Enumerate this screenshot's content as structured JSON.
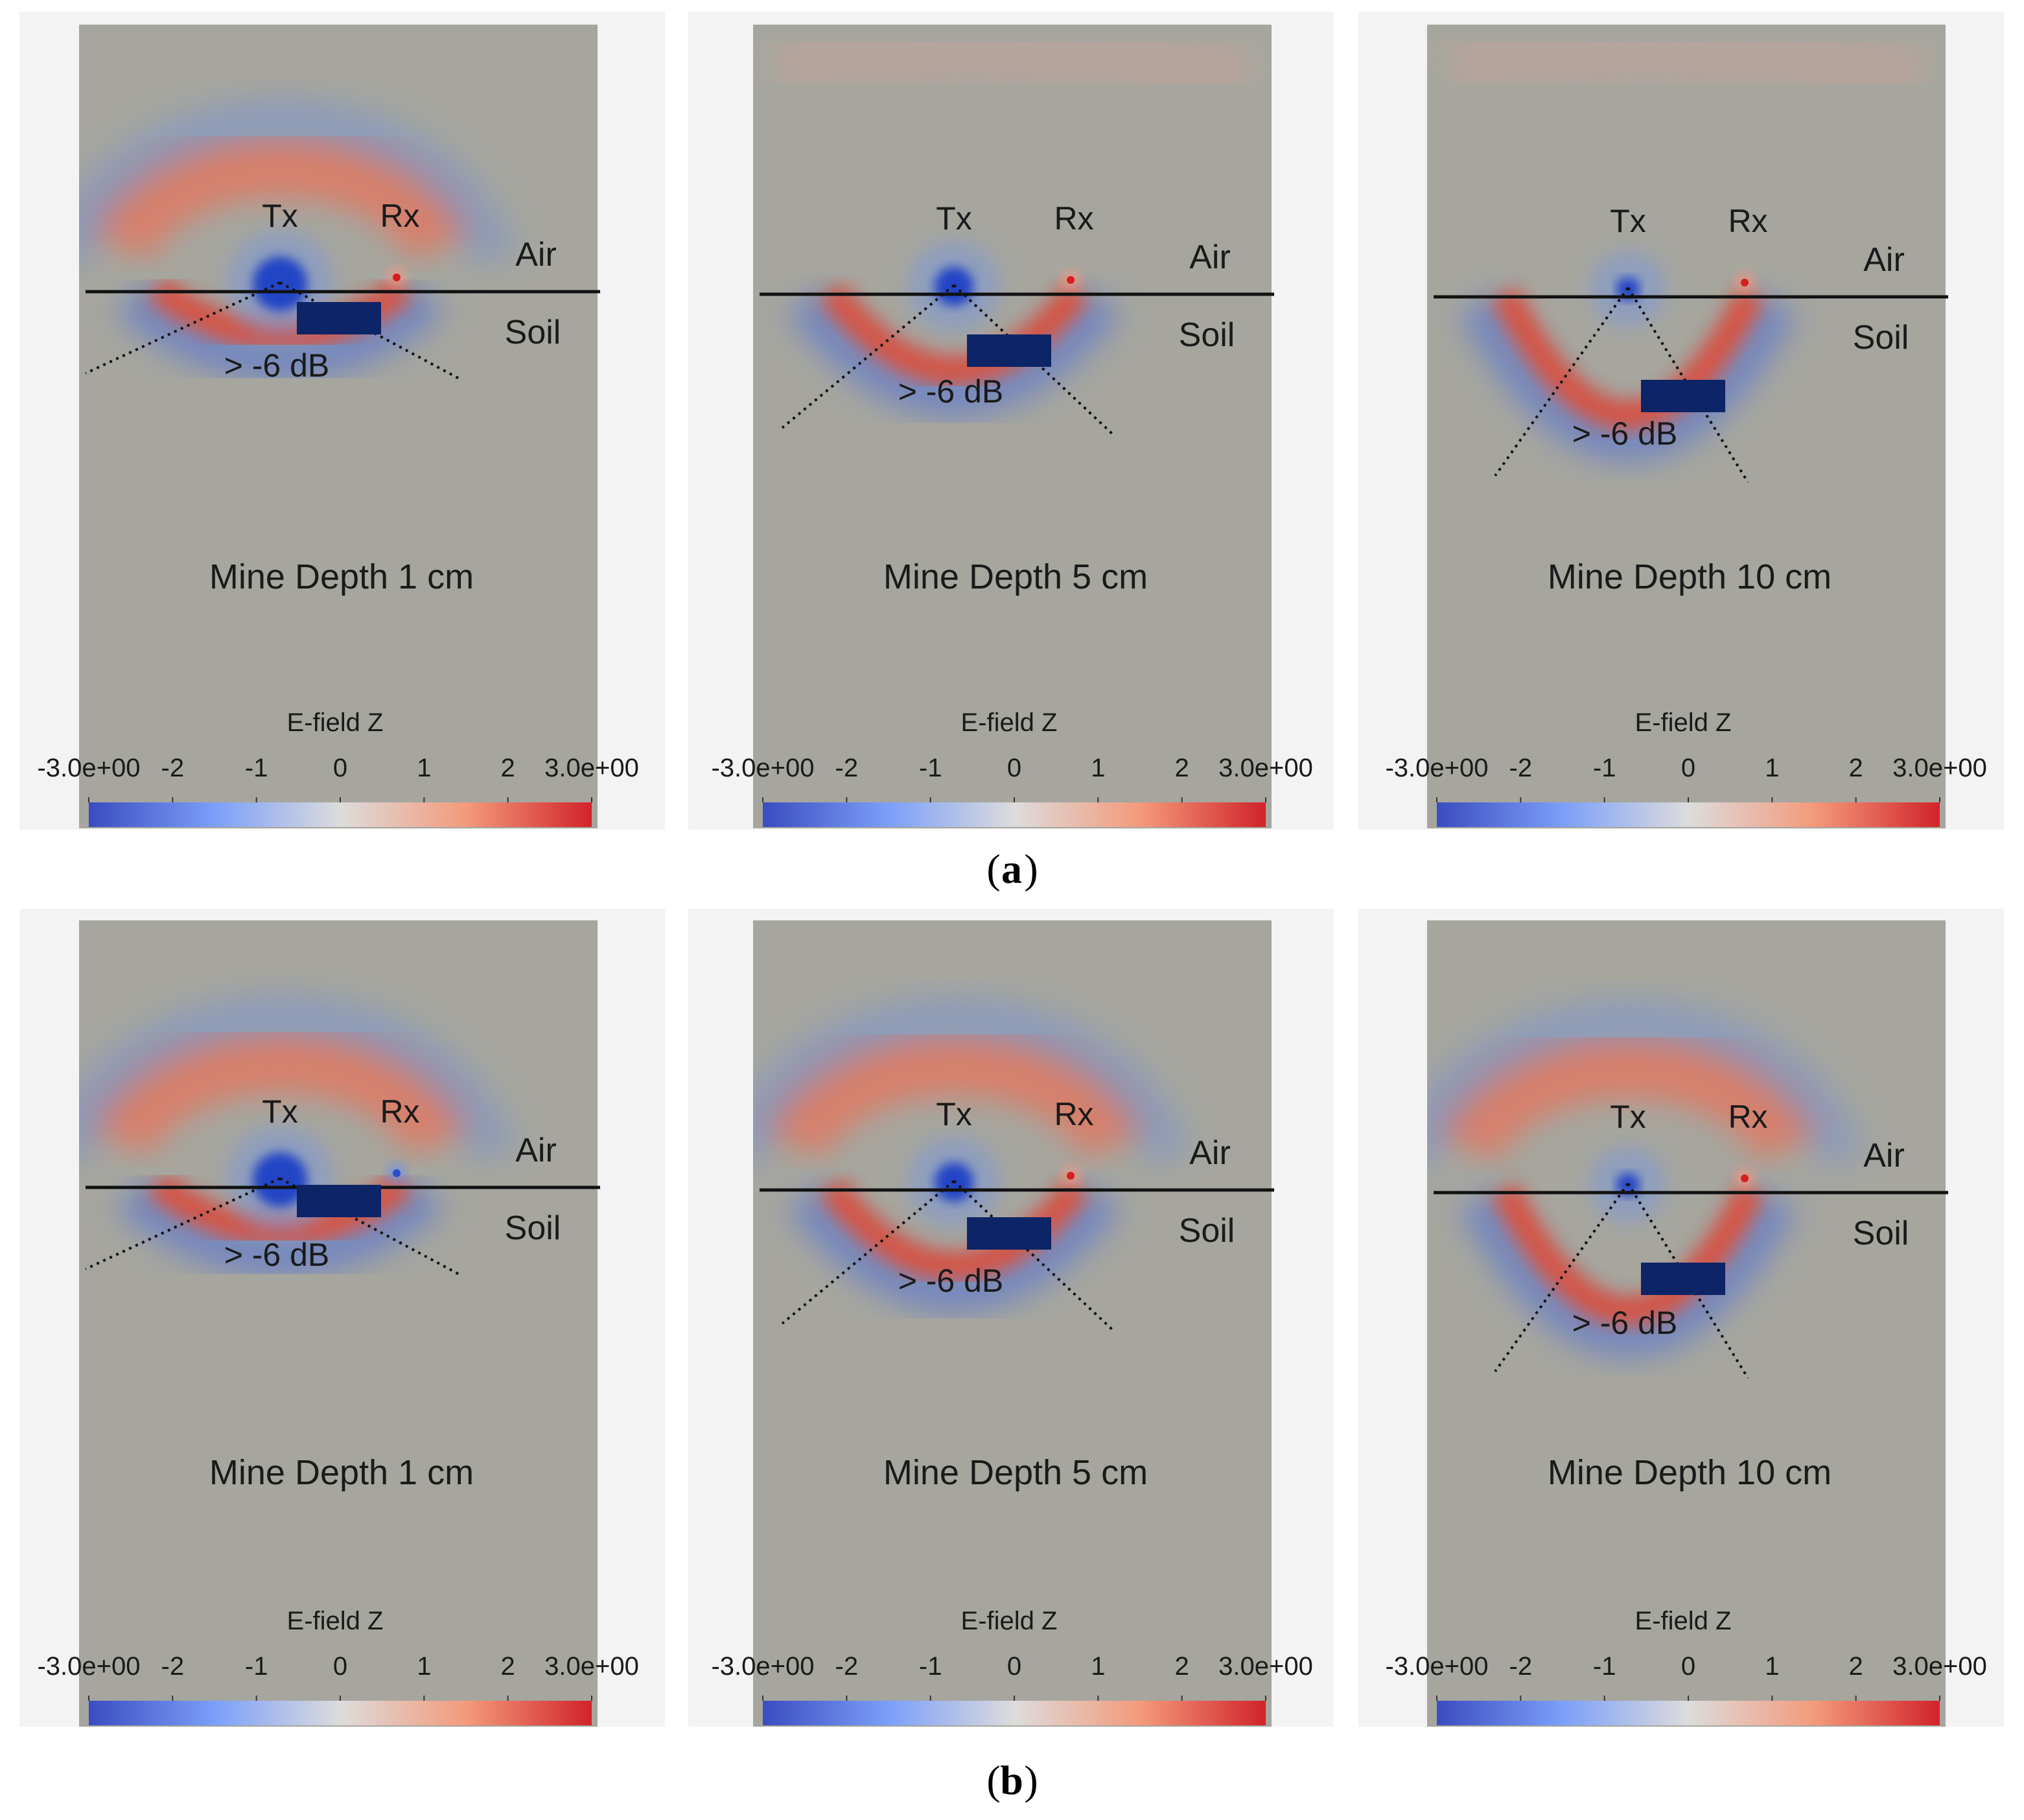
{
  "figure": {
    "rows": [
      {
        "caption": "a",
        "panels": [
          {
            "title": "Mine Depth 1 cm",
            "depth_cm": 1,
            "tx": "Tx",
            "rx": "Rx",
            "air": "Air",
            "soil": "Soil",
            "threshold": "> -6 dB"
          },
          {
            "title": "Mine Depth 5 cm",
            "depth_cm": 5,
            "tx": "Tx",
            "rx": "Rx",
            "air": "Air",
            "soil": "Soil",
            "threshold": "> -6 dB"
          },
          {
            "title": "Mine Depth 10 cm",
            "depth_cm": 10,
            "tx": "Tx",
            "rx": "Rx",
            "air": "Air",
            "soil": "Soil",
            "threshold": "> -6 dB"
          }
        ]
      },
      {
        "caption": "b",
        "panels": [
          {
            "title": "Mine Depth 1 cm",
            "depth_cm": 1,
            "tx": "Tx",
            "rx": "Rx",
            "air": "Air",
            "soil": "Soil",
            "threshold": "> -6 dB"
          },
          {
            "title": "Mine Depth 5 cm",
            "depth_cm": 5,
            "tx": "Tx",
            "rx": "Rx",
            "air": "Air",
            "soil": "Soil",
            "threshold": "> -6 dB"
          },
          {
            "title": "Mine Depth 10 cm",
            "depth_cm": 10,
            "tx": "Tx",
            "rx": "Rx",
            "air": "Air",
            "soil": "Soil",
            "threshold": "> -6 dB"
          }
        ]
      }
    ],
    "colorbar": {
      "title": "E-field Z",
      "tick_labels": [
        "-3.0e+00",
        "-2",
        "-1",
        "0",
        "1",
        "2",
        "3.0e+00"
      ],
      "min": -3.0,
      "max": 3.0,
      "colors": {
        "low": "#3b4cc0",
        "mid": "#dddcdc",
        "high": "#d1232a"
      }
    },
    "colors": {
      "background": "#a6a69f",
      "mine": "#0d2466",
      "positive": "#e8553e",
      "negative": "#3f67d6"
    }
  }
}
